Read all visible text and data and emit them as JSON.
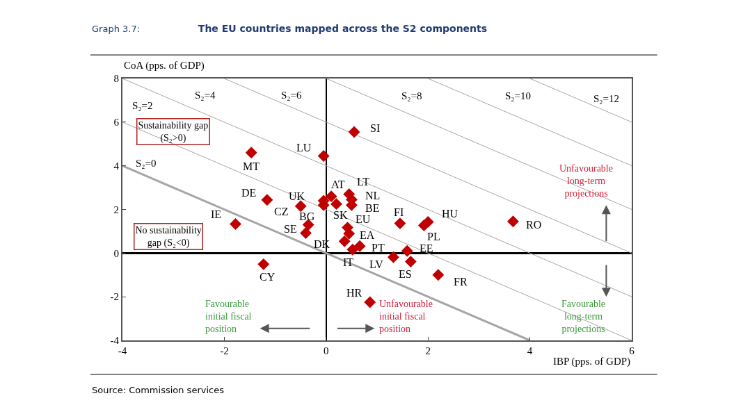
{
  "chart_data": {
    "type": "scatter",
    "title": "The EU countries mapped across the S2 components",
    "xlabel": "IBP (pps. of GDP)",
    "ylabel": "CoA (pps. of GDP)",
    "xlim": [
      -4,
      6
    ],
    "xticks": [
      -4,
      -2,
      0,
      2,
      4,
      6
    ],
    "ylim": [
      -4,
      8
    ],
    "yticks": [
      -4,
      -2,
      0,
      2,
      4,
      6,
      8
    ],
    "series": [
      {
        "type": "line",
        "color": "#a6a6a6",
        "x": [
          -4,
          4
        ],
        "values": [
          4,
          -4
        ]
      },
      {
        "type": "line",
        "color": "#a6a6a6",
        "x": [
          -4,
          6
        ],
        "values": [
          6,
          -4
        ]
      },
      {
        "type": "line",
        "color": "#a6a6a6",
        "x": [
          -4,
          6
        ],
        "values": [
          8,
          -2
        ]
      },
      {
        "type": "line",
        "color": "#a6a6a6",
        "x": [
          -2,
          6
        ],
        "values": [
          8,
          0
        ]
      },
      {
        "type": "line",
        "color": "#a6a6a6",
        "x": [
          0,
          6
        ],
        "values": [
          8,
          2
        ]
      },
      {
        "type": "line",
        "color": "#a6a6a6",
        "x": [
          2,
          6
        ],
        "values": [
          8,
          4
        ]
      },
      {
        "type": "line",
        "color": "#a6a6a6",
        "x": [
          4,
          6
        ],
        "values": [
          8,
          6
        ]
      },
      {
        "color": "#c00000",
        "marker": "diamond",
        "x": [
          0.55,
          -0.05,
          -1.47,
          -1.16,
          0.1,
          0.45,
          0.5,
          0.5,
          -0.05,
          -0.5,
          -0.05,
          0.2,
          -1.78,
          -0.35,
          -0.4,
          0.42,
          0.45,
          0.36,
          0.66,
          0.52,
          1.45,
          2.0,
          1.92,
          3.67,
          1.59,
          1.32,
          1.66,
          2.2,
          0.86,
          -1.23
        ],
        "values": [
          5.55,
          4.45,
          4.6,
          2.44,
          2.6,
          2.7,
          2.45,
          2.2,
          2.4,
          2.15,
          2.2,
          2.25,
          1.33,
          1.3,
          0.92,
          1.17,
          0.89,
          0.54,
          0.32,
          0.16,
          1.36,
          1.43,
          1.27,
          1.45,
          0.1,
          -0.19,
          -0.39,
          -1.0,
          -2.25,
          -0.51
        ]
      }
    ],
    "annotations": [
      "Graph 3.7:",
      "Source: Commission services",
      "Sustainability gap\n(S₂>0)",
      "No sustainability\ngap (S₂<0)",
      "Unfavourable\nlong-term\nprojections",
      "Favourable\ninitial fiscal\nposition",
      "Unfavourable\ninitial fiscal\nposition",
      "Favourable\nlong-term\nprojections",
      "S₂=0",
      "S₂=2",
      "S₂=4",
      "S₂=6",
      "S₂=8",
      "S₂=10",
      "S₂=12",
      {
        "text": "SI",
        "x": 0.55,
        "y": 5.55
      },
      {
        "text": "LU",
        "x": -0.05,
        "y": 4.45
      },
      {
        "text": "MT",
        "x": -1.47,
        "y": 4.6
      },
      {
        "text": "DE",
        "x": -1.16,
        "y": 2.44
      },
      {
        "text": "AT",
        "x": 0.1,
        "y": 2.6
      },
      {
        "text": "LT",
        "x": 0.45,
        "y": 2.7
      },
      {
        "text": "NL",
        "x": 0.5,
        "y": 2.45
      },
      {
        "text": "BE",
        "x": 0.5,
        "y": 2.2
      },
      {
        "text": "UK",
        "x": -0.05,
        "y": 2.4
      },
      {
        "text": "CZ",
        "x": -0.5,
        "y": 2.15
      },
      {
        "text": "BG",
        "x": -0.05,
        "y": 2.2
      },
      {
        "text": "SK",
        "x": 0.2,
        "y": 2.25
      },
      {
        "text": "IE",
        "x": -1.78,
        "y": 1.33
      },
      {
        "text": "SE",
        "x": -0.35,
        "y": 1.3
      },
      {
        "text": "EU",
        "x": 0.42,
        "y": 1.17
      },
      {
        "text": "EA",
        "x": 0.45,
        "y": 0.89
      },
      {
        "text": "DK",
        "x": 0.36,
        "y": 0.54
      },
      {
        "text": "PT",
        "x": 0.66,
        "y": 0.32
      },
      {
        "text": "IT",
        "x": 0.52,
        "y": 0.16
      },
      {
        "text": "FI",
        "x": 1.45,
        "y": 1.36
      },
      {
        "text": "HU",
        "x": 2.0,
        "y": 1.43
      },
      {
        "text": "PL",
        "x": 1.92,
        "y": 1.27
      },
      {
        "text": "RO",
        "x": 3.67,
        "y": 1.45
      },
      {
        "text": "EE",
        "x": 1.59,
        "y": 0.1
      },
      {
        "text": "LV",
        "x": 1.32,
        "y": -0.19
      },
      {
        "text": "ES",
        "x": 1.66,
        "y": -0.39
      },
      {
        "text": "FR",
        "x": 2.2,
        "y": -1.0
      },
      {
        "text": "HR",
        "x": 0.86,
        "y": -2.25
      },
      {
        "text": "CY",
        "x": -1.23,
        "y": -0.51
      }
    ]
  }
}
